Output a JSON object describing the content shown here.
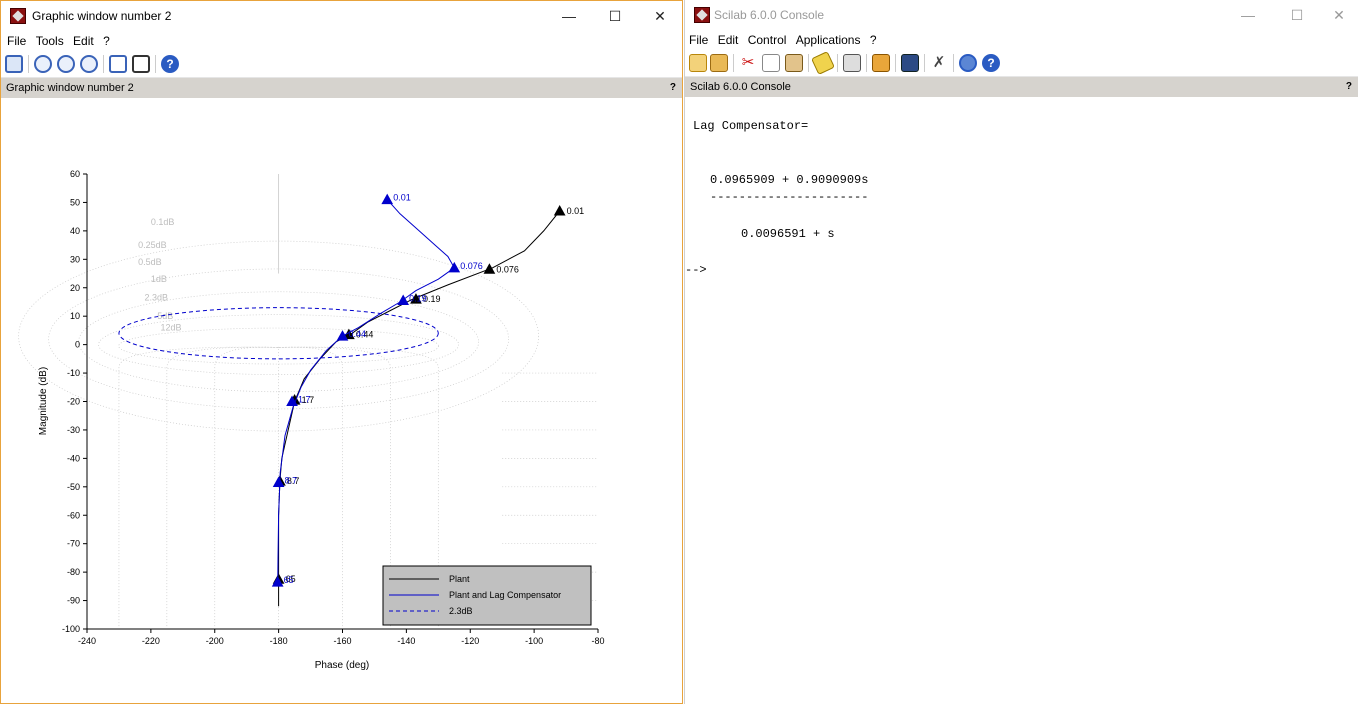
{
  "graphic_window": {
    "title": "Graphic window number 2",
    "menu": [
      "File",
      "Tools",
      "Edit",
      "?"
    ],
    "panel_title": "Graphic window number 2",
    "panel_help": "?",
    "toolbar_icons": [
      "rotate-icon",
      "zoom-icon",
      "zoom-in-icon",
      "zoom-out-icon",
      "datatip-icon",
      "editor-icon",
      "help-icon"
    ]
  },
  "console_window": {
    "title": "Scilab 6.0.0 Console",
    "menu": [
      "File",
      "Edit",
      "Control",
      "Applications",
      "?"
    ],
    "panel_title": "Scilab 6.0.0 Console",
    "panel_help": "?",
    "toolbar_icons": [
      "new-script-icon",
      "open-icon",
      "cut-icon",
      "copy-icon",
      "paste-icon",
      "clear-icon",
      "print-icon",
      "browser-icon",
      "variables-icon",
      "settings-icon",
      "modules-icon",
      "help-icon"
    ],
    "lines": [
      "Lag Compensator=",
      "0.0965909 + 0.9090909s",
      "----------------------",
      "0.0096591 + s",
      "-->"
    ]
  },
  "chart_data": {
    "type": "line",
    "title": "",
    "xlabel": "Phase (deg)",
    "ylabel": "Magnitude (dB)",
    "xlim": [
      -240,
      -80
    ],
    "ylim": [
      -100,
      60
    ],
    "xticks": [
      -240,
      -220,
      -200,
      -180,
      -160,
      -140,
      -120,
      -100,
      -80
    ],
    "yticks": [
      -100,
      -90,
      -80,
      -70,
      -60,
      -50,
      -40,
      -30,
      -20,
      -10,
      0,
      10,
      20,
      30,
      40,
      50,
      60
    ],
    "grid_labels": [
      "0.1dB",
      "0.25dB",
      "0.5dB",
      "1dB",
      "2.3dB",
      "5dB",
      "12dB"
    ],
    "legend": [
      "Plant",
      "Plant and Lag Compensator",
      "2.3dB"
    ],
    "legend_placement": "bottom-right",
    "series": [
      {
        "name": "Plant",
        "color": "#000000",
        "points": [
          [
            -92,
            47
          ],
          [
            -97,
            40
          ],
          [
            -103,
            33
          ],
          [
            -113,
            27
          ],
          [
            -127,
            21
          ],
          [
            -138,
            16
          ],
          [
            -145,
            12
          ],
          [
            -152,
            8
          ],
          [
            -157,
            4
          ],
          [
            -162,
            1
          ],
          [
            -167,
            -5
          ],
          [
            -172,
            -12
          ],
          [
            -175,
            -20
          ],
          [
            -177,
            -30
          ],
          [
            -179,
            -40
          ],
          [
            -179.6,
            -48
          ],
          [
            -180,
            -60
          ],
          [
            -180,
            -70
          ],
          [
            -180,
            -83
          ],
          [
            -180,
            -92
          ]
        ],
        "markers": [
          {
            "x": -92,
            "y": 47,
            "label": "0.01"
          },
          {
            "x": -114,
            "y": 26.5,
            "label": "0.076"
          },
          {
            "x": -137,
            "y": 16,
            "label": "0.19"
          },
          {
            "x": -158,
            "y": 3.5,
            "label": "0.44"
          },
          {
            "x": -175,
            "y": -19.5,
            "label": "1.7"
          },
          {
            "x": -179.6,
            "y": -48,
            "label": "8.7"
          },
          {
            "x": -180,
            "y": -82.5,
            "label": "65"
          }
        ]
      },
      {
        "name": "Plant and Lag Compensator",
        "color": "#0000cc",
        "points": [
          [
            -146,
            51
          ],
          [
            -142,
            46
          ],
          [
            -136,
            40
          ],
          [
            -131,
            35
          ],
          [
            -127,
            31
          ],
          [
            -125,
            27
          ],
          [
            -130,
            23
          ],
          [
            -137,
            19
          ],
          [
            -142,
            15
          ],
          [
            -148,
            11
          ],
          [
            -155,
            6
          ],
          [
            -160,
            3
          ],
          [
            -165,
            -2
          ],
          [
            -170,
            -9
          ],
          [
            -173,
            -15
          ],
          [
            -175.5,
            -22
          ],
          [
            -178,
            -32
          ],
          [
            -179.5,
            -45
          ],
          [
            -180,
            -60
          ],
          [
            -180.2,
            -75
          ],
          [
            -180.3,
            -85
          ]
        ],
        "markers": [
          {
            "x": -146,
            "y": 51,
            "label": "0.01"
          },
          {
            "x": -125,
            "y": 27,
            "label": "0.076"
          },
          {
            "x": -141,
            "y": 15.5,
            "label": "0.19"
          },
          {
            "x": -160,
            "y": 3,
            "label": "0.44"
          },
          {
            "x": -175.8,
            "y": -20,
            "label": "1.7"
          },
          {
            "x": -180,
            "y": -48.5,
            "label": "8.7"
          },
          {
            "x": -180.3,
            "y": -83.5,
            "label": "65"
          }
        ]
      },
      {
        "name": "2.3dB",
        "color": "#0000cc",
        "dashed": true,
        "ellipse": {
          "cx": -180,
          "cy": 4,
          "rx": 50,
          "ry": 9
        }
      }
    ]
  }
}
